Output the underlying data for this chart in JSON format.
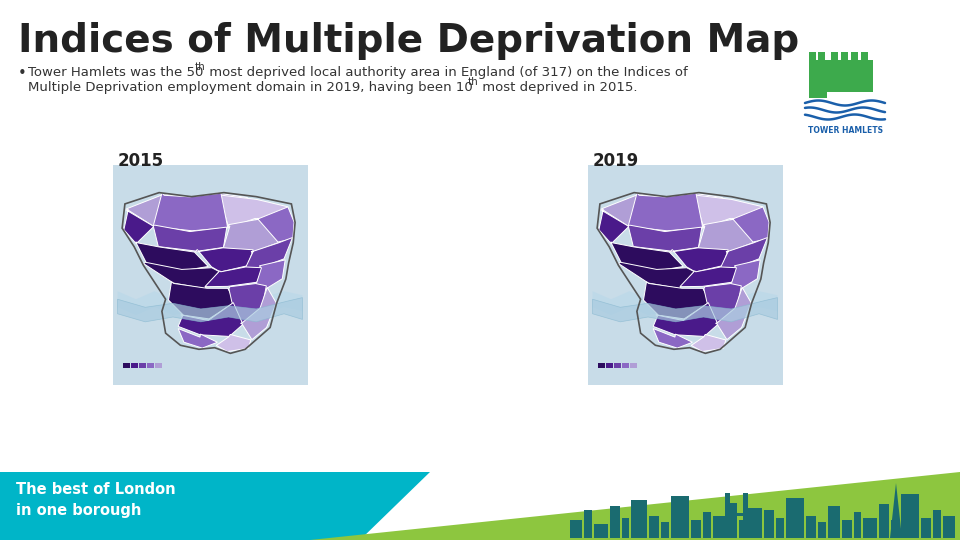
{
  "title": "Indices of Multiple Deprivation Map",
  "title_color": "#222222",
  "bullet_line1a": "Tower Hamlets was the 50",
  "bullet_sup1": "th",
  "bullet_line1b": " most deprived local authority area in England (of 317) on the Indices of",
  "bullet_line2a": "Multiple Deprivation employment domain in 2019, having been 10",
  "bullet_sup2": "th",
  "bullet_line2b": " most deprived in 2015.",
  "year_left": "2015",
  "year_right": "2019",
  "bg_color": "#ffffff",
  "footer_teal": "#00b5c8",
  "footer_green": "#8dc63f",
  "footer_text": "The best of London\nin one borough",
  "footer_text_color": "#ffffff",
  "footer_skyline_color": "#1a6b70",
  "title_font_size": 28,
  "body_font_size": 9.5,
  "logo_castle_color": "#3daa4c",
  "logo_water_color": "#1a5faa",
  "logo_text_color": "#1a5faa",
  "map_bg_color": "#ddd5ea",
  "purples": [
    "#2d0c5e",
    "#4a1a8a",
    "#6b3fa8",
    "#8b68c4",
    "#b09ed6",
    "#cfc0e8",
    "#e8e0f4"
  ],
  "water_color": "#b8d8e8",
  "ward_edge_color": "#ffffff"
}
